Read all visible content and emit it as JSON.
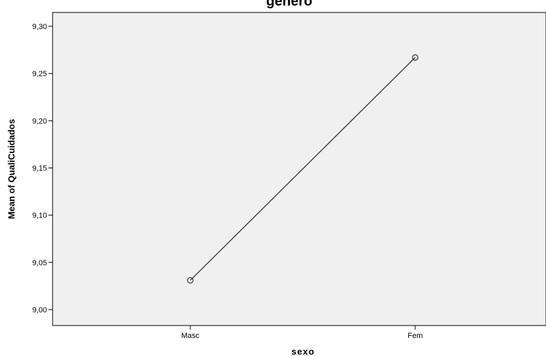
{
  "chart_data": {
    "type": "line",
    "title": "genero",
    "xlabel": "sexo",
    "ylabel": "Mean of QualiCuidados",
    "categories": [
      "Masc",
      "Fem"
    ],
    "series": [
      {
        "values": [
          9.031,
          9.267
        ],
        "marker": "circle",
        "color": "#333333"
      }
    ],
    "ylim": [
      8.985,
      9.32
    ],
    "yticks": [
      9.0,
      9.05,
      9.1,
      9.15,
      9.2,
      9.25,
      9.3
    ],
    "ytick_labels": [
      "9,00",
      "9,05",
      "9,10",
      "9,15",
      "9,20",
      "9,25",
      "9,30"
    ],
    "grid": false,
    "legend": "none",
    "colors": {
      "plot_background": "#f0f0f0",
      "axis": "#000000"
    }
  }
}
